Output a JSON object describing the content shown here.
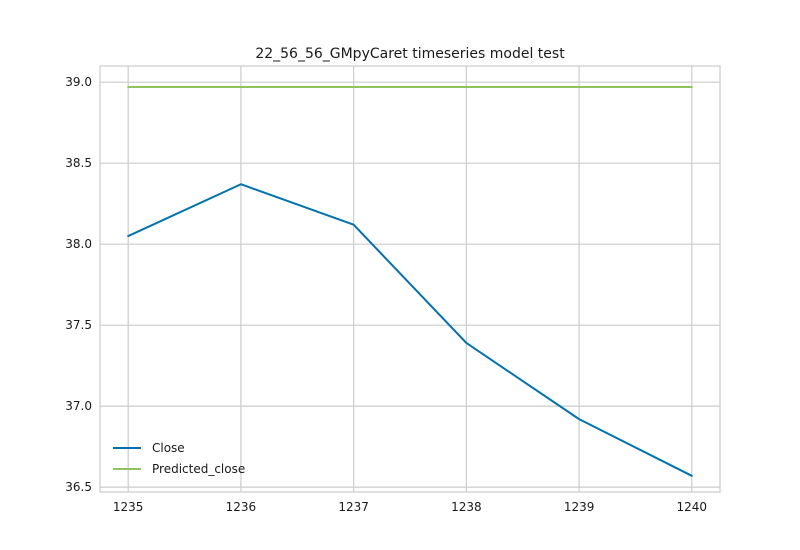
{
  "chart_data": {
    "type": "line",
    "title": "22_56_56_GMpyCaret timeseries model test",
    "xlabel": "",
    "ylabel": "",
    "x": [
      1235,
      1236,
      1237,
      1238,
      1239,
      1240
    ],
    "x_ticks": [
      "1235",
      "1236",
      "1237",
      "1238",
      "1239",
      "1240"
    ],
    "y_ticks": [
      "36.5",
      "37.0",
      "37.5",
      "38.0",
      "38.5",
      "39.0"
    ],
    "xlim": [
      1234.75,
      1240.25
    ],
    "ylim": [
      36.47,
      39.1
    ],
    "grid": true,
    "legend_position": "lower-left",
    "series": [
      {
        "name": "Close",
        "color": "#0072b2",
        "values": [
          38.05,
          38.37,
          38.12,
          37.39,
          36.92,
          36.57
        ]
      },
      {
        "name": "Predicted_close",
        "color": "#8fc35f",
        "values": [
          38.97,
          38.97,
          38.97,
          38.97,
          38.97,
          38.97
        ]
      }
    ]
  }
}
